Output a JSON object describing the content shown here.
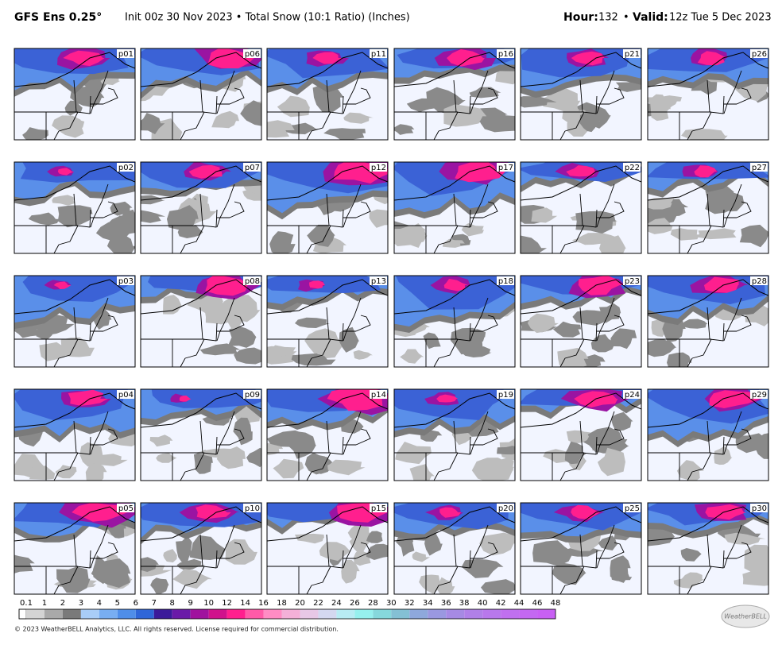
{
  "header": {
    "model": "GFS Ens 0.25°",
    "description": "Init 00z 30 Nov 2023 • Total Snow (10:1 Ratio) (Inches)",
    "hour_label": "Hour:",
    "hour": "132",
    "separator": "•",
    "valid_label": "Valid:",
    "valid": "12z Tue 5 Dec 2023"
  },
  "panels": [
    "p01",
    "p02",
    "p03",
    "p04",
    "p05",
    "p06",
    "p07",
    "p08",
    "p09",
    "p10",
    "p11",
    "p12",
    "p13",
    "p14",
    "p15",
    "p16",
    "p17",
    "p18",
    "p19",
    "p20",
    "p21",
    "p22",
    "p23",
    "p24",
    "p25",
    "p26",
    "p27",
    "p28",
    "p29",
    "p30"
  ],
  "legend": {
    "ticks": [
      0.1,
      1,
      2,
      3,
      4,
      5,
      6,
      7,
      8,
      9,
      10,
      12,
      14,
      16,
      18,
      20,
      22,
      24,
      26,
      28,
      30,
      32,
      34,
      36,
      38,
      40,
      42,
      44,
      46,
      48
    ],
    "colors": [
      "#d4d4d4",
      "#a9a9a9",
      "#7a7a7a",
      "#a9cdf7",
      "#78aef2",
      "#4f8ee9",
      "#2f66d8",
      "#3b1a9a",
      "#6a1aa8",
      "#a0129e",
      "#d0128c",
      "#ff1f8e",
      "#ff5aa8",
      "#ff8cc4",
      "#f4b0d8",
      "#e8c8e6",
      "#d4d8f0",
      "#b8ecf4",
      "#96f0ee",
      "#86d8dc",
      "#84c0d4",
      "#8ea8dc",
      "#9a98e0",
      "#a68ae4",
      "#b080e8",
      "#b878ec",
      "#c070f0",
      "#c468f2",
      "#c860f4"
    ]
  },
  "footer": {
    "copyright": "© 2023 WeatherBELL Analytics, LLC. All rights reserved. License required for commercial distribution.",
    "logo": "WeatherBELL"
  }
}
